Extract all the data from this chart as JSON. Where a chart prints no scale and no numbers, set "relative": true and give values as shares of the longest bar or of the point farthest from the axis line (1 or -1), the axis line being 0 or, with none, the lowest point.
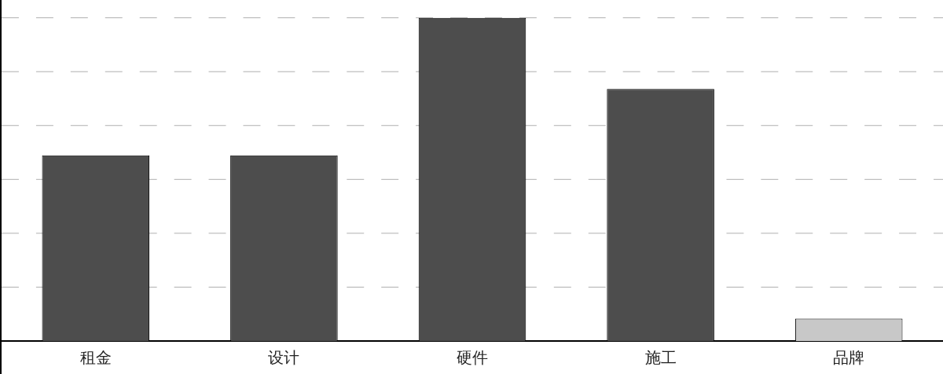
{
  "chart_data": {
    "type": "bar",
    "relative": true,
    "categories": [
      "租金",
      "设计",
      "硬件",
      "施工",
      "品牌"
    ],
    "values": [
      0.574,
      0.574,
      1,
      0.78,
      0.069
    ],
    "colors": [
      "#4d4d4d",
      "#4d4d4d",
      "#4d4d4d",
      "#4d4d4d",
      "#c8c8c8"
    ],
    "grid": "y",
    "legend": false
  }
}
